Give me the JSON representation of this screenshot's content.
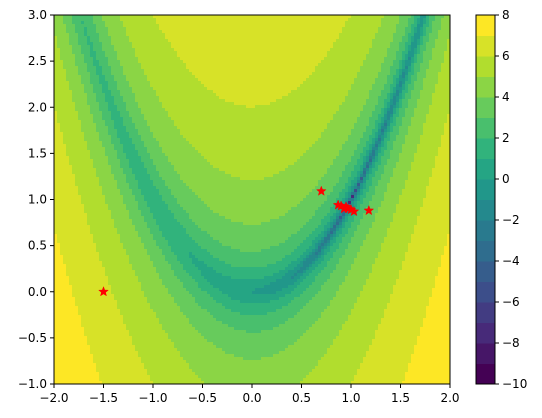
{
  "chart_data": {
    "type": "contourf",
    "function": "log((1 - x)^2 + 100*(y - x^2)^2)",
    "x_range": [
      -2.0,
      2.0
    ],
    "y_range": [
      -1.0,
      3.0
    ],
    "x_ticks": [
      -2.0,
      -1.5,
      -1.0,
      -0.5,
      0.0,
      0.5,
      1.0,
      1.5,
      2.0
    ],
    "x_tick_labels": [
      "−2.0",
      "−1.5",
      "−1.0",
      "−0.5",
      "0.0",
      "0.5",
      "1.0",
      "1.5",
      "2.0"
    ],
    "y_ticks": [
      -1.0,
      -0.5,
      0.0,
      0.5,
      1.0,
      1.5,
      2.0,
      2.5,
      3.0
    ],
    "y_tick_labels": [
      "−1.0",
      "−0.5",
      "0.0",
      "0.5",
      "1.0",
      "1.5",
      "2.0",
      "2.5",
      "3.0"
    ],
    "colorbar": {
      "range": [
        -10,
        8
      ],
      "ticks": [
        -10,
        -8,
        -6,
        -4,
        -2,
        0,
        2,
        4,
        6,
        8
      ],
      "tick_labels": [
        "−10",
        "−8",
        "−6",
        "−4",
        "−2",
        "0",
        "2",
        "4",
        "6",
        "8"
      ],
      "levels": [
        -10,
        -9,
        -8,
        -7,
        -6,
        -5,
        -4,
        -3,
        -2,
        -1,
        0,
        1,
        2,
        3,
        4,
        5,
        6,
        7,
        8
      ]
    },
    "colormap": "viridis",
    "points": {
      "marker": "star",
      "color": "#ff0000",
      "x": [
        -1.5,
        0.7,
        0.87,
        0.9,
        0.93,
        0.95,
        0.97,
        1.0,
        1.03,
        1.18
      ],
      "y": [
        0.0,
        1.09,
        0.94,
        0.93,
        0.9,
        0.92,
        0.9,
        0.89,
        0.87,
        0.88
      ]
    }
  }
}
